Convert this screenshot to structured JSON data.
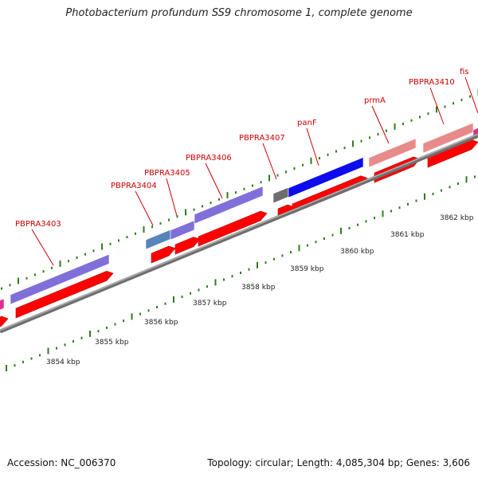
{
  "title": "Photobacterium profundum SS9 chromosome 1, complete genome",
  "footer": {
    "accession": "Accession: NC_006370",
    "topology": "Topology: circular; Length: 4,085,304 bp; Genes: 3,606"
  },
  "colors": {
    "backbone": "#8a8a8a",
    "tick": "#2e7d1a",
    "label": "#cc0000",
    "cds": "#ff0000",
    "gene_purple": "#7b68d8",
    "gene_steel": "#4f7fb8",
    "gene_pink": "#e88484",
    "gene_blue": "#0000ee",
    "gene_gray": "#666666",
    "gene_magenta": "#e0208a",
    "gene_orange": "#ff9900"
  },
  "axis_ticks": [
    "3854 kbp",
    "3855 kbp",
    "3856 kbp",
    "3857 kbp",
    "3858 kbp",
    "3859 kbp",
    "3860 kbp",
    "3861 kbp",
    "3862 kbp"
  ],
  "gene_labels": [
    "PBPRA3403",
    "PBPRA3404",
    "PBPRA3405",
    "PBPRA3406",
    "PBPRA3407",
    "panF",
    "prmA",
    "PBPRA3410",
    "fis"
  ]
}
